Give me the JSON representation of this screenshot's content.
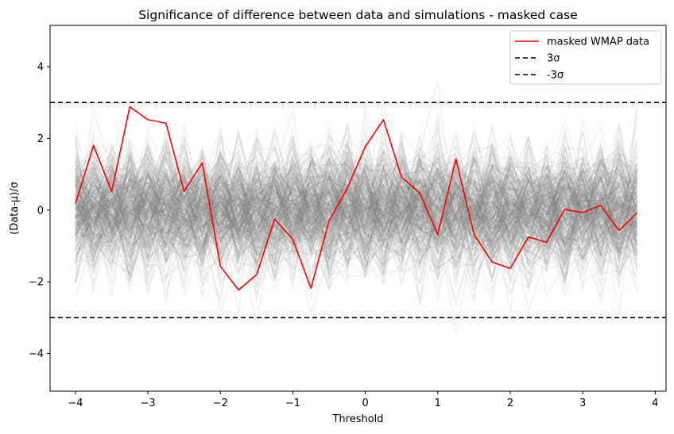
{
  "chart_data": {
    "type": "line",
    "title": "Significance of difference between data and simulations - masked case",
    "xlabel": "Threshold",
    "ylabel": "(Data-μ)/σ",
    "xlim": [
      -4.35,
      4.15
    ],
    "ylim": [
      -5.05,
      5.15
    ],
    "xticks": [
      -4,
      -3,
      -2,
      -1,
      0,
      1,
      2,
      3,
      4
    ],
    "xtick_labels": [
      "−4",
      "−3",
      "−2",
      "−1",
      "0",
      "1",
      "2",
      "3",
      "4"
    ],
    "yticks": [
      -4,
      -2,
      0,
      2,
      4
    ],
    "ytick_labels": [
      "−4",
      "−2",
      "0",
      "2",
      "4"
    ],
    "grid": false,
    "legend_position": "top-right",
    "x": [
      -4.0,
      -3.75,
      -3.5,
      -3.25,
      -3.0,
      -2.75,
      -2.5,
      -2.25,
      -2.0,
      -1.75,
      -1.5,
      -1.25,
      -1.0,
      -0.75,
      -0.5,
      -0.25,
      0.0,
      0.25,
      0.5,
      0.75,
      1.0,
      1.25,
      1.5,
      1.75,
      2.0,
      2.25,
      2.5,
      2.75,
      3.0,
      3.25,
      3.5,
      3.75
    ],
    "series": [
      {
        "name": "masked WMAP data",
        "color": "#ff0000",
        "style": "solid",
        "values": [
          0.18,
          1.8,
          0.52,
          2.88,
          2.52,
          2.42,
          0.52,
          1.32,
          -1.57,
          -2.23,
          -1.8,
          -0.25,
          -0.82,
          -2.18,
          -0.3,
          0.6,
          1.77,
          2.52,
          0.92,
          0.48,
          -0.68,
          1.42,
          -0.68,
          -1.45,
          -1.63,
          -0.75,
          -0.9,
          0.02,
          -0.07,
          0.13,
          -0.57,
          -0.08
        ]
      }
    ],
    "reference_lines": [
      {
        "name": "3σ",
        "y": 3,
        "color": "#000000",
        "style": "dashed"
      },
      {
        "name": "-3σ",
        "y": -3,
        "color": "#000000",
        "style": "dashed"
      }
    ],
    "background_series": {
      "description_visible": false,
      "color": "#808080",
      "opacity": 0.1,
      "count": 300,
      "std": 0.85
    },
    "legend": [
      {
        "label": "masked WMAP data",
        "color": "#ff0000",
        "style": "solid"
      },
      {
        "label": "3σ",
        "color": "#000000",
        "style": "dashed"
      },
      {
        "label": "-3σ",
        "color": "#000000",
        "style": "dashed"
      }
    ]
  }
}
